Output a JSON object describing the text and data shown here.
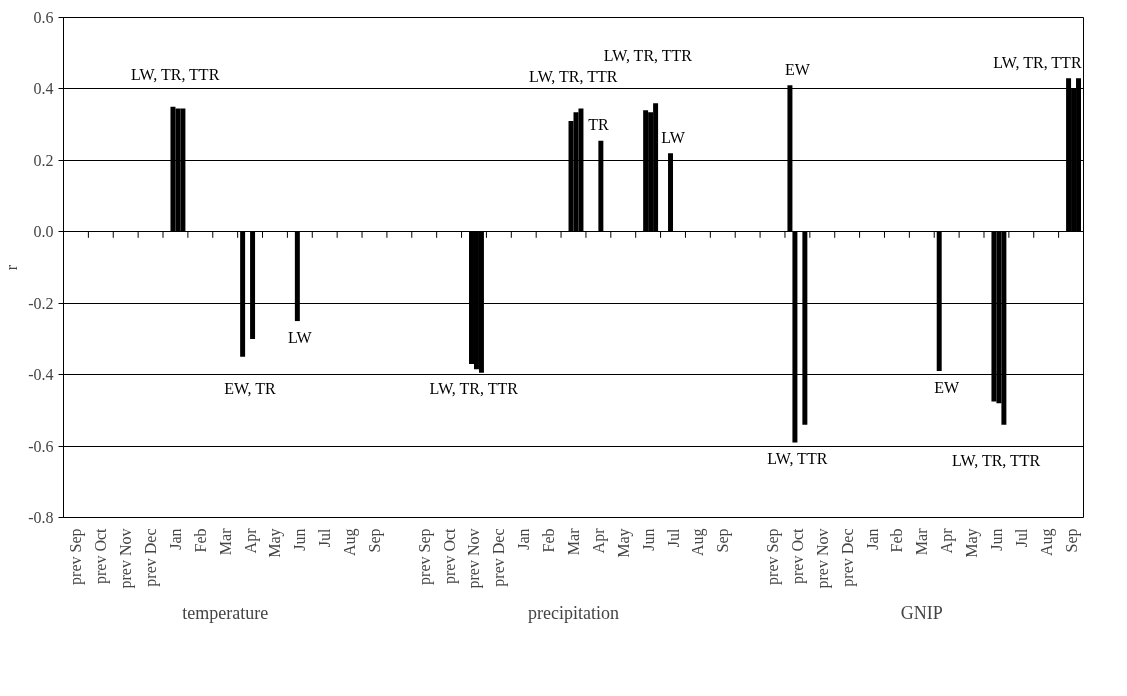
{
  "chart_data": {
    "type": "bar",
    "ylabel": "r",
    "categories": [
      "prev Sep",
      "prev Oct",
      "prev Nov",
      "prev Dec",
      "Jan",
      "Feb",
      "Mar",
      "Apr",
      "May",
      "Jun",
      "Jul",
      "Aug",
      "Sep",
      null,
      "prev Sep",
      "prev Oct",
      "prev Nov",
      "prev Dec",
      "Jan",
      "Feb",
      "Mar",
      "Apr",
      "May",
      "Jun",
      "Jul",
      "Aug",
      "Sep",
      null,
      "prev Sep",
      "prev Oct",
      "prev Nov",
      "prev Dec",
      "Jan",
      "Feb",
      "Mar",
      "Apr",
      "May",
      "Jun",
      "Jul",
      "Aug",
      "Sep"
    ],
    "series": [
      {
        "color": "#000000",
        "values": [
          null,
          null,
          null,
          null,
          null,
          null,
          null,
          -0.35,
          null,
          null,
          null,
          null,
          null,
          null,
          null,
          null,
          null,
          null,
          null,
          null,
          null,
          null,
          null,
          null,
          null,
          null,
          null,
          null,
          null,
          0.41,
          null,
          null,
          null,
          null,
          null,
          -0.39,
          null,
          null,
          null,
          null,
          null
        ]
      },
      {
        "color": "#000000",
        "values": [
          null,
          null,
          null,
          null,
          0.35,
          null,
          null,
          null,
          null,
          -0.25,
          null,
          null,
          null,
          null,
          null,
          null,
          -0.37,
          null,
          null,
          null,
          0.31,
          null,
          null,
          0.34,
          0.22,
          null,
          null,
          null,
          null,
          -0.59,
          null,
          null,
          null,
          null,
          null,
          null,
          null,
          -0.475,
          null,
          null,
          0.43
        ]
      },
      {
        "color": "#000000",
        "values": [
          null,
          null,
          null,
          null,
          0.345,
          null,
          null,
          -0.3,
          null,
          null,
          null,
          null,
          null,
          null,
          null,
          null,
          -0.385,
          null,
          null,
          null,
          0.335,
          0.255,
          null,
          0.335,
          null,
          null,
          null,
          null,
          null,
          null,
          null,
          null,
          null,
          null,
          null,
          null,
          null,
          -0.48,
          null,
          null,
          0.4
        ]
      },
      {
        "color": "#000000",
        "values": [
          null,
          null,
          null,
          null,
          0.345,
          null,
          null,
          null,
          null,
          null,
          null,
          null,
          null,
          null,
          null,
          null,
          -0.395,
          null,
          null,
          null,
          0.345,
          null,
          null,
          0.36,
          null,
          null,
          null,
          null,
          null,
          -0.54,
          null,
          null,
          null,
          null,
          null,
          null,
          null,
          -0.54,
          null,
          null,
          0.43
        ]
      }
    ],
    "ylim": [
      -0.8,
      0.6
    ],
    "yticks": [
      {
        "value": -0.8,
        "label": "-0.8"
      },
      {
        "value": -0.6,
        "label": "-0.6"
      },
      {
        "value": -0.4,
        "label": "-0.4"
      },
      {
        "value": -0.2,
        "label": "-0.2"
      },
      {
        "value": 0,
        "label": "0.0"
      },
      {
        "value": 0.2,
        "label": "0.2"
      },
      {
        "value": 0.4,
        "label": "0.4"
      },
      {
        "value": 0.6,
        "label": "0.6"
      }
    ],
    "grid": "y",
    "annotations": [
      "temperature",
      "precipitation",
      "GNIP",
      "LW, TR, TTR",
      "EW, TR",
      "LW",
      "LW, TR, TTR",
      "LW, TR, TTR",
      "TR",
      "LW, TR, TTR",
      "LW",
      "EW",
      "LW, TTR",
      "EW",
      "LW, TR, TTR",
      "LW, TR, TTR"
    ]
  }
}
